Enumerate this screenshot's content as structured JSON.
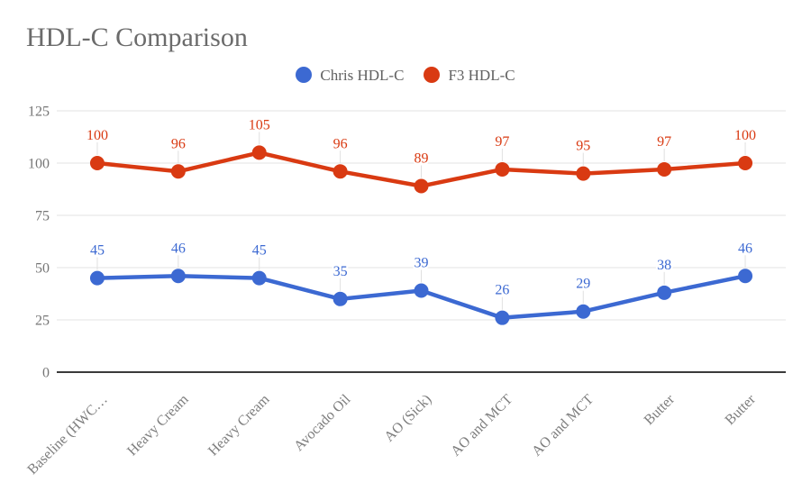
{
  "chart_data": {
    "type": "line",
    "title": "HDL-C Comparison",
    "categories": [
      "Baseline (HWC…",
      "Heavy Cream",
      "Heavy Cream",
      "Avocado Oil",
      "AO (Sick)",
      "AO and MCT",
      "AO and MCT",
      "Butter",
      "Butter"
    ],
    "series": [
      {
        "name": "Chris HDL-C",
        "color": "#3C69D2",
        "values": [
          45,
          46,
          45,
          35,
          39,
          26,
          29,
          38,
          46
        ]
      },
      {
        "name": "F3 HDL-C",
        "color": "#D93A12",
        "values": [
          100,
          96,
          105,
          96,
          89,
          97,
          95,
          97,
          100
        ]
      }
    ],
    "ylim": [
      0,
      125
    ],
    "y_tick_step": 25,
    "y_ticks": [
      0,
      25,
      50,
      75,
      100,
      125
    ],
    "grid": true,
    "legend_position": "top",
    "point_labels": true,
    "x_label_rotation": -45
  },
  "colors": {
    "background": "#ffffff",
    "gridline": "#e3e3e3",
    "axis_line": "#3b3b3b",
    "annotation_stem": "#e0e0e0",
    "title_text": "#6b6b6b",
    "axis_text": "#757575",
    "legend_text": "#616161",
    "series_blue": "#3C69D2",
    "series_red": "#D93A12"
  }
}
